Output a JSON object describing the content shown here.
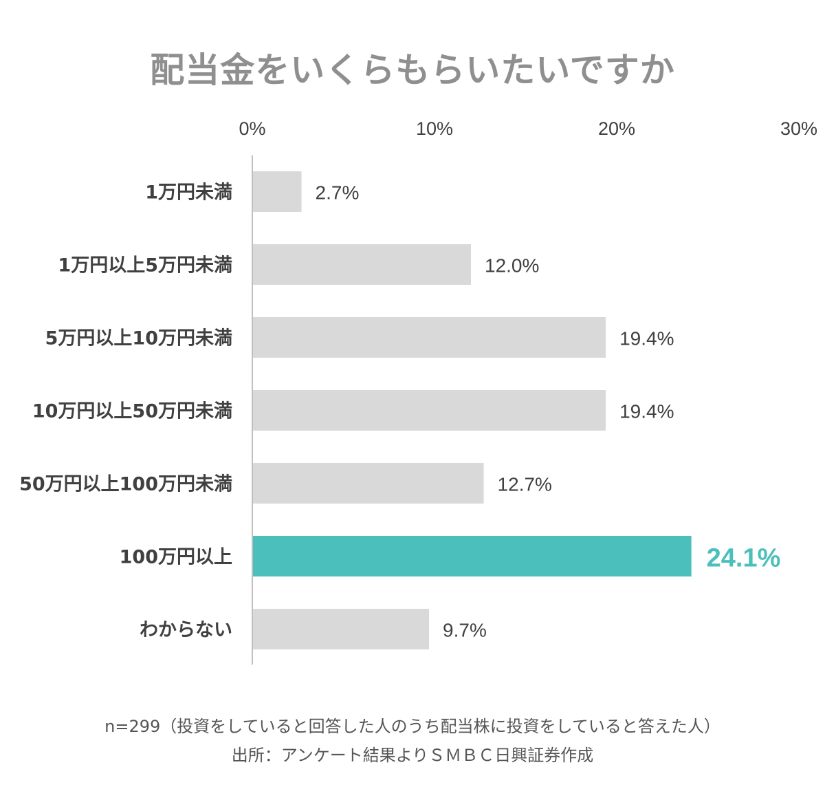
{
  "colors": {
    "bar": "#d9d9d9",
    "highlight": "#4bbfbb",
    "axis": "#bfbfbf",
    "title": "#8f8f8f",
    "text": "#404040",
    "note": "#555555"
  },
  "notes": {
    "sample": "n=299（投資をしていると回答した人のうち配当株に投資をしていると答えた人）",
    "source": "出所：アンケート結果よりＳＭＢＣ日興証券作成"
  },
  "chart_data": {
    "type": "bar",
    "orientation": "horizontal",
    "title": "配当金をいくらもらいたいですか",
    "categories": [
      "1万円未満",
      "1万円以上5万円未満",
      "5万円以上10万円未満",
      "10万円以上50万円未満",
      "50万円以上100万円未満",
      "100万円以上",
      "わからない"
    ],
    "values": [
      2.7,
      12.0,
      19.4,
      19.4,
      12.7,
      24.1,
      9.7
    ],
    "value_labels": [
      "2.7%",
      "12.0%",
      "19.4%",
      "19.4%",
      "12.7%",
      "24.1%",
      "9.7%"
    ],
    "highlight_index": 5,
    "xlim": [
      0,
      30
    ],
    "xticks": [
      0,
      10,
      20,
      30
    ],
    "xtick_labels": [
      "0%",
      "10%",
      "20%",
      "30%"
    ],
    "grid": false,
    "legend": "none"
  }
}
